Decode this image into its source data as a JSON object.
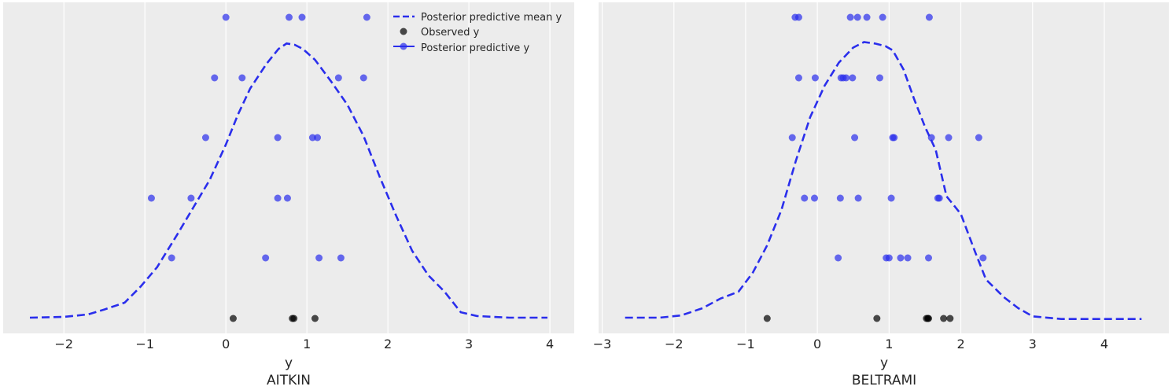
{
  "colors": {
    "panel_bg": "#ececec",
    "grid": "#ffffff",
    "predictive": "#2a2eec",
    "observed": "#000000"
  },
  "legend": {
    "mean_label": "Posterior predictive mean y",
    "observed_label": "Observed y",
    "predictive_label": "Posterior predictive y"
  },
  "chart_data": [
    {
      "type": "line+scatter",
      "xlabel": "y",
      "title": "AITKIN",
      "xlim": [
        -2.75,
        4.3
      ],
      "xticks": [
        -2,
        -1,
        0,
        1,
        2,
        3,
        4
      ],
      "xtick_labels": [
        "−2",
        "−1",
        "0",
        "1",
        "2",
        "3",
        "4"
      ],
      "grid": true,
      "legend_position": "top-right",
      "mean_curve": [
        [
          -2.42,
          0.0
        ],
        [
          -2.0,
          0.003
        ],
        [
          -1.7,
          0.012
        ],
        [
          -1.5,
          0.03
        ],
        [
          -1.25,
          0.055
        ],
        [
          -1.05,
          0.115
        ],
        [
          -0.85,
          0.185
        ],
        [
          -0.6,
          0.305
        ],
        [
          -0.4,
          0.405
        ],
        [
          -0.2,
          0.505
        ],
        [
          0.0,
          0.635
        ],
        [
          0.15,
          0.745
        ],
        [
          0.3,
          0.84
        ],
        [
          0.5,
          0.93
        ],
        [
          0.65,
          0.985
        ],
        [
          0.75,
          1.005
        ],
        [
          0.85,
          1.0
        ],
        [
          0.95,
          0.985
        ],
        [
          1.1,
          0.945
        ],
        [
          1.3,
          0.865
        ],
        [
          1.5,
          0.78
        ],
        [
          1.7,
          0.665
        ],
        [
          1.9,
          0.515
        ],
        [
          2.1,
          0.375
        ],
        [
          2.3,
          0.245
        ],
        [
          2.5,
          0.155
        ],
        [
          2.7,
          0.095
        ],
        [
          2.9,
          0.02
        ],
        [
          3.1,
          0.006
        ],
        [
          3.5,
          0.0
        ],
        [
          3.97,
          0.0
        ]
      ],
      "observed": [
        0.09,
        0.82,
        0.84,
        1.1
      ],
      "predictive_rows": [
        [
          0.0,
          0.78,
          0.94,
          1.74
        ],
        [
          -0.14,
          0.2,
          1.39,
          1.7
        ],
        [
          -0.25,
          0.64,
          1.07,
          1.13
        ],
        [
          -0.92,
          -0.43,
          0.64,
          0.76
        ],
        [
          -0.67,
          0.49,
          1.15,
          1.42
        ]
      ]
    },
    {
      "type": "line+scatter",
      "xlabel": "y",
      "title": "BELTRAMI",
      "xlim": [
        -3.05,
        4.9
      ],
      "xticks": [
        -3,
        -2,
        -1,
        0,
        1,
        2,
        3,
        4
      ],
      "xtick_labels": [
        "−3",
        "−2",
        "−1",
        "0",
        "1",
        "2",
        "3",
        "4"
      ],
      "grid": true,
      "mean_curve": [
        [
          -2.68,
          0.0
        ],
        [
          -2.2,
          0.0
        ],
        [
          -1.9,
          0.008
        ],
        [
          -1.6,
          0.035
        ],
        [
          -1.35,
          0.07
        ],
        [
          -1.1,
          0.095
        ],
        [
          -0.9,
          0.165
        ],
        [
          -0.7,
          0.265
        ],
        [
          -0.5,
          0.395
        ],
        [
          -0.3,
          0.575
        ],
        [
          -0.1,
          0.735
        ],
        [
          0.1,
          0.85
        ],
        [
          0.3,
          0.935
        ],
        [
          0.5,
          0.99
        ],
        [
          0.65,
          1.01
        ],
        [
          0.8,
          1.005
        ],
        [
          0.95,
          0.995
        ],
        [
          1.05,
          0.98
        ],
        [
          1.2,
          0.91
        ],
        [
          1.35,
          0.8
        ],
        [
          1.5,
          0.7
        ],
        [
          1.65,
          0.615
        ],
        [
          1.8,
          0.445
        ],
        [
          2.0,
          0.38
        ],
        [
          2.2,
          0.24
        ],
        [
          2.35,
          0.14
        ],
        [
          2.6,
          0.075
        ],
        [
          2.8,
          0.035
        ],
        [
          3.0,
          0.005
        ],
        [
          3.4,
          -0.005
        ],
        [
          4.0,
          -0.005
        ],
        [
          4.52,
          -0.005
        ]
      ],
      "observed": [
        -0.7,
        0.83,
        1.52,
        1.54,
        1.55,
        1.76,
        1.85
      ],
      "predictive_rows": [
        [
          -0.31,
          -0.26,
          0.46,
          0.56,
          0.69,
          0.91,
          1.56
        ],
        [
          -0.26,
          -0.03,
          0.33,
          0.36,
          0.4,
          0.49,
          0.87
        ],
        [
          -0.35,
          0.52,
          1.05,
          1.07,
          1.59,
          1.83,
          2.25
        ],
        [
          -0.18,
          -0.04,
          0.32,
          0.57,
          1.03,
          1.68,
          1.7
        ],
        [
          0.29,
          0.96,
          1.0,
          1.16,
          1.26,
          1.55,
          2.31
        ]
      ]
    }
  ]
}
